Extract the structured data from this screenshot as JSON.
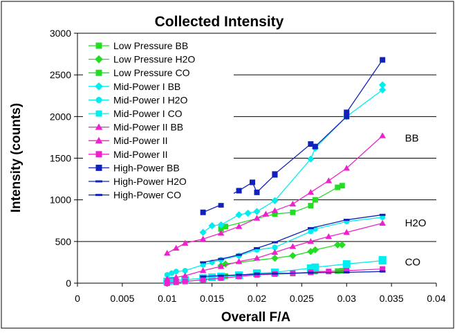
{
  "chart_data": {
    "type": "scatter",
    "title": "Collected Intensity",
    "xlabel": "Overall F/A",
    "ylabel": "Intensity (counts)",
    "xlim": [
      0,
      0.04
    ],
    "ylim": [
      0,
      3000
    ],
    "x_ticks": [
      "0",
      "0.005",
      "0.01",
      "0.015",
      "0.02",
      "0.025",
      "0.03",
      "0.035",
      "0.04"
    ],
    "y_ticks": [
      "0",
      "500",
      "1000",
      "1500",
      "2000",
      "2500",
      "3000"
    ],
    "grid": "horizontal",
    "legend_position": "top-left",
    "annotations": [
      {
        "text": "BB",
        "x": 0.0365,
        "y": 1700
      },
      {
        "text": "H2O",
        "x": 0.0365,
        "y": 680
      },
      {
        "text": "CO",
        "x": 0.0365,
        "y": 210
      }
    ],
    "series": [
      {
        "name": "Low Pressure BB",
        "color": "#22DD22",
        "marker": "square",
        "points": [
          [
            0.016,
            650
          ],
          [
            0.0165,
            680
          ],
          [
            0.022,
            830
          ],
          [
            0.024,
            850
          ],
          [
            0.026,
            930
          ],
          [
            0.0265,
            1000
          ],
          [
            0.029,
            1150
          ],
          [
            0.0295,
            1170
          ]
        ]
      },
      {
        "name": "Low Pressure H2O",
        "color": "#22DD22",
        "marker": "diamond",
        "points": [
          [
            0.016,
            210
          ],
          [
            0.0165,
            230
          ],
          [
            0.022,
            300
          ],
          [
            0.024,
            330
          ],
          [
            0.026,
            380
          ],
          [
            0.0265,
            400
          ],
          [
            0.029,
            460
          ],
          [
            0.0295,
            460
          ]
        ]
      },
      {
        "name": "Low Pressure CO",
        "color": "#22DD22",
        "marker": "square",
        "points": [
          [
            0.016,
            80
          ],
          [
            0.0165,
            85
          ],
          [
            0.022,
            110
          ],
          [
            0.024,
            115
          ],
          [
            0.026,
            130
          ],
          [
            0.0265,
            140
          ],
          [
            0.029,
            145
          ],
          [
            0.0295,
            150
          ]
        ]
      },
      {
        "name": "Mid-Power I BB",
        "color": "#00EEEE",
        "marker": "diamond",
        "points": [
          [
            0.014,
            610
          ],
          [
            0.015,
            690
          ],
          [
            0.016,
            700
          ],
          [
            0.018,
            820
          ],
          [
            0.019,
            840
          ],
          [
            0.02,
            860
          ],
          [
            0.022,
            990
          ],
          [
            0.026,
            1490
          ],
          [
            0.0265,
            1620
          ],
          [
            0.03,
            2000
          ],
          [
            0.034,
            2320
          ],
          [
            0.034,
            2380
          ]
        ]
      },
      {
        "name": "Mid-Power I H2O",
        "color": "#00EEEE",
        "marker": "circle",
        "points": [
          [
            0.01,
            100
          ],
          [
            0.0105,
            120
          ],
          [
            0.011,
            140
          ],
          [
            0.012,
            150
          ],
          [
            0.014,
            220
          ],
          [
            0.015,
            250
          ],
          [
            0.016,
            280
          ],
          [
            0.018,
            330
          ],
          [
            0.02,
            400
          ],
          [
            0.022,
            430
          ],
          [
            0.026,
            620
          ],
          [
            0.0265,
            650
          ],
          [
            0.03,
            740
          ],
          [
            0.034,
            790
          ]
        ]
      },
      {
        "name": "Mid-Power I CO",
        "color": "#00EEEE",
        "marker": "square",
        "points": [
          [
            0.01,
            20
          ],
          [
            0.0105,
            30
          ],
          [
            0.012,
            40
          ],
          [
            0.014,
            60
          ],
          [
            0.015,
            70
          ],
          [
            0.016,
            80
          ],
          [
            0.018,
            95
          ],
          [
            0.02,
            120
          ],
          [
            0.022,
            130
          ],
          [
            0.026,
            180
          ],
          [
            0.0265,
            190
          ],
          [
            0.03,
            230
          ],
          [
            0.034,
            270
          ],
          [
            0.034,
            280
          ]
        ]
      },
      {
        "name": "Mid-Power II BB",
        "color": "#EE22CC",
        "marker": "triangle",
        "points": [
          [
            0.01,
            360
          ],
          [
            0.011,
            420
          ],
          [
            0.012,
            480
          ],
          [
            0.014,
            530
          ],
          [
            0.016,
            600
          ],
          [
            0.018,
            680
          ],
          [
            0.02,
            780
          ],
          [
            0.021,
            830
          ],
          [
            0.022,
            870
          ],
          [
            0.024,
            950
          ],
          [
            0.026,
            1090
          ],
          [
            0.028,
            1230
          ],
          [
            0.03,
            1380
          ],
          [
            0.034,
            1770
          ]
        ]
      },
      {
        "name": "Mid-Power II",
        "color": "#EE22CC",
        "marker": "triangle",
        "points": [
          [
            0.01,
            50
          ],
          [
            0.011,
            70
          ],
          [
            0.012,
            90
          ],
          [
            0.014,
            150
          ],
          [
            0.016,
            200
          ],
          [
            0.018,
            260
          ],
          [
            0.02,
            300
          ],
          [
            0.022,
            370
          ],
          [
            0.024,
            440
          ],
          [
            0.026,
            500
          ],
          [
            0.028,
            560
          ],
          [
            0.03,
            610
          ],
          [
            0.034,
            720
          ]
        ]
      },
      {
        "name": "Mid-Power II",
        "color": "#EE22CC",
        "marker": "square",
        "points": [
          [
            0.01,
            0
          ],
          [
            0.011,
            10
          ],
          [
            0.012,
            20
          ],
          [
            0.014,
            40
          ],
          [
            0.016,
            60
          ],
          [
            0.018,
            80
          ],
          [
            0.02,
            100
          ],
          [
            0.022,
            110
          ],
          [
            0.024,
            120
          ],
          [
            0.026,
            130
          ],
          [
            0.028,
            140
          ],
          [
            0.03,
            150
          ],
          [
            0.034,
            170
          ]
        ]
      },
      {
        "name": "High-Power BB",
        "color": "#1122BB",
        "marker": "square",
        "points": [
          [
            0.014,
            850
          ],
          [
            0.016,
            940
          ],
          [
            0.016,
            1000
          ],
          [
            0.018,
            1110
          ],
          [
            0.0195,
            1210
          ],
          [
            0.02,
            1090
          ],
          [
            0.022,
            1300
          ],
          [
            0.022,
            1310
          ],
          [
            0.026,
            1670
          ],
          [
            0.0265,
            1640
          ],
          [
            0.03,
            2000
          ],
          [
            0.03,
            2050
          ],
          [
            0.034,
            2680
          ]
        ]
      },
      {
        "name": "High-Power H2O",
        "color": "#1122BB",
        "marker": "dash",
        "points": [
          [
            0.014,
            250
          ],
          [
            0.016,
            290
          ],
          [
            0.018,
            340
          ],
          [
            0.02,
            420
          ],
          [
            0.022,
            490
          ],
          [
            0.026,
            660
          ],
          [
            0.03,
            760
          ],
          [
            0.034,
            820
          ]
        ]
      },
      {
        "name": "High-Power CO",
        "color": "#1122BB",
        "marker": "dash",
        "points": [
          [
            0.014,
            80
          ],
          [
            0.016,
            90
          ],
          [
            0.018,
            100
          ],
          [
            0.02,
            110
          ],
          [
            0.022,
            115
          ],
          [
            0.026,
            125
          ],
          [
            0.03,
            130
          ],
          [
            0.034,
            140
          ]
        ]
      }
    ]
  }
}
